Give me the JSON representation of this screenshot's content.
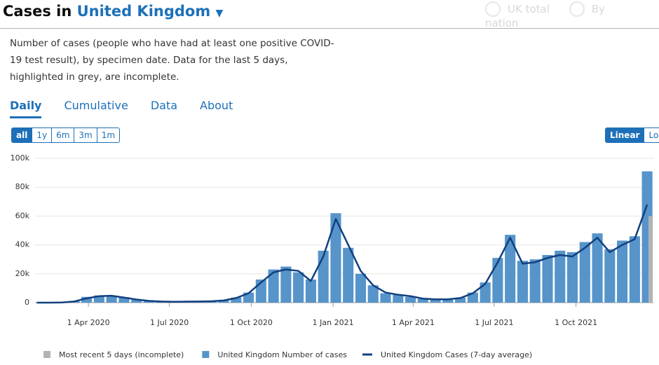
{
  "header": {
    "title": "Cases in",
    "area": "United Kingdom",
    "options": [
      "UK total",
      "By nation"
    ]
  },
  "description": "Number of cases (people who have had at least one positive COVID-19 test result), by specimen date. Data for the last 5 days, highlighted in grey, are incomplete.",
  "tabs": [
    "Daily",
    "Cumulative",
    "Data",
    "About"
  ],
  "ranges": [
    "all",
    "1y",
    "6m",
    "3m",
    "1m"
  ],
  "scales": [
    "Linear",
    "Log"
  ],
  "chart_data": {
    "type": "bar",
    "x": [
      "2020-02-03",
      "2020-02-17",
      "2020-03-02",
      "2020-03-16",
      "2020-03-30",
      "2020-04-13",
      "2020-04-27",
      "2020-05-11",
      "2020-05-25",
      "2020-06-08",
      "2020-06-22",
      "2020-07-06",
      "2020-07-20",
      "2020-08-03",
      "2020-08-17",
      "2020-08-31",
      "2020-09-14",
      "2020-09-28",
      "2020-10-12",
      "2020-10-26",
      "2020-11-09",
      "2020-11-23",
      "2020-12-07",
      "2020-12-21",
      "2021-01-04",
      "2021-01-18",
      "2021-02-01",
      "2021-02-15",
      "2021-03-01",
      "2021-03-15",
      "2021-03-29",
      "2021-04-12",
      "2021-04-26",
      "2021-05-10",
      "2021-05-24",
      "2021-06-07",
      "2021-06-21",
      "2021-07-05",
      "2021-07-19",
      "2021-08-02",
      "2021-08-16",
      "2021-08-30",
      "2021-09-13",
      "2021-09-27",
      "2021-10-11",
      "2021-10-25",
      "2021-11-08",
      "2021-11-22",
      "2021-12-06",
      "2021-12-20"
    ],
    "series": [
      {
        "name": "Most recent 5 days (incomplete)",
        "color": "#b1b4b6",
        "type": "bar",
        "values": [
          null,
          null,
          null,
          null,
          null,
          null,
          null,
          null,
          null,
          null,
          null,
          null,
          null,
          null,
          null,
          null,
          null,
          null,
          null,
          null,
          null,
          null,
          null,
          null,
          null,
          null,
          null,
          null,
          null,
          null,
          null,
          null,
          null,
          null,
          null,
          null,
          null,
          null,
          null,
          null,
          null,
          null,
          null,
          null,
          null,
          null,
          null,
          null,
          null,
          60000
        ]
      },
      {
        "name": "United Kingdom Number of cases",
        "color": "#5694ca",
        "type": "bar",
        "values": [
          0,
          0,
          100,
          1000,
          4000,
          5000,
          4500,
          3800,
          2000,
          1300,
          900,
          700,
          800,
          1000,
          1200,
          1700,
          3500,
          7000,
          16000,
          23000,
          25000,
          21000,
          16000,
          36000,
          62000,
          38000,
          20000,
          12000,
          6500,
          5500,
          4000,
          2600,
          2200,
          2500,
          3500,
          7000,
          14000,
          31000,
          47000,
          29000,
          30000,
          33000,
          36000,
          35000,
          42000,
          48000,
          37000,
          43000,
          46000,
          91000
        ]
      },
      {
        "name": "United Kingdom Cases (7-day average)",
        "color": "#12407f",
        "type": "line",
        "values": [
          0,
          0,
          100,
          800,
          3000,
          4500,
          4800,
          3500,
          2200,
          1200,
          800,
          600,
          700,
          800,
          1000,
          1500,
          3200,
          6500,
          14000,
          21000,
          23000,
          22000,
          15000,
          32000,
          58000,
          40000,
          22000,
          12000,
          7000,
          5500,
          4500,
          2800,
          2300,
          2300,
          3200,
          6500,
          13000,
          28000,
          45000,
          27000,
          28000,
          31000,
          33000,
          32000,
          38000,
          45000,
          35000,
          40000,
          44000,
          68000
        ]
      }
    ],
    "xlim": [
      "2020-02-01",
      "2021-12-27"
    ],
    "xticks": [
      {
        "value": "2020-04-01",
        "label": "1 Apr 2020"
      },
      {
        "value": "2020-07-01",
        "label": "1 Jul 2020"
      },
      {
        "value": "2020-10-01",
        "label": "1 Oct 2020"
      },
      {
        "value": "2021-01-01",
        "label": "1 Jan 2021"
      },
      {
        "value": "2021-04-01",
        "label": "1 Apr 2021"
      },
      {
        "value": "2021-07-01",
        "label": "1 Jul 2021"
      },
      {
        "value": "2021-10-01",
        "label": "1 Oct 2021"
      }
    ],
    "ylim": [
      0,
      100000
    ],
    "yticks": [
      0,
      {
        "value": 20000,
        "label": "20k"
      },
      {
        "value": 40000,
        "label": "40k"
      },
      {
        "value": 60000,
        "label": "60k"
      },
      {
        "value": 80000,
        "label": "80k"
      },
      {
        "value": 100000,
        "label": "100k"
      }
    ],
    "grid": true
  }
}
